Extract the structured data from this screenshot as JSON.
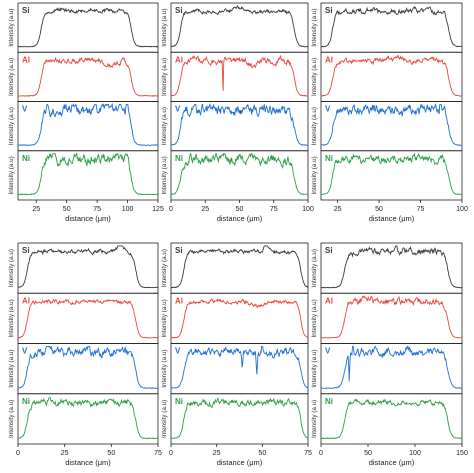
{
  "colors": {
    "Si": "#3a3a3a",
    "Al": "#e8473e",
    "V": "#1f6fd1",
    "Ni": "#2e9e4a"
  },
  "ylabel": "Intensity (a.u)",
  "xlabel": "distance (μm)",
  "element_labels": [
    "Si",
    "Al",
    "V",
    "Ni"
  ],
  "chart_data": [
    {
      "type": "line",
      "xlim": [
        10,
        125
      ],
      "xticks": [
        25,
        50,
        75,
        100,
        125
      ],
      "edges": [
        29,
        103
      ],
      "series": [
        {
          "name": "Si",
          "noise": 0.03,
          "bumps": [
            [
              45,
              0.06,
              4
            ],
            [
              70,
              0.05,
              4
            ],
            [
              95,
              0.05,
              3
            ]
          ]
        },
        {
          "name": "Al",
          "noise": 0.04,
          "bumps": [
            [
              85,
              -0.1,
              8
            ]
          ]
        },
        {
          "name": "V",
          "noise": 0.09,
          "bumps": [
            [
              100,
              0.2,
              1.2
            ]
          ]
        },
        {
          "name": "Ni",
          "noise": 0.09,
          "bumps": []
        }
      ]
    },
    {
      "type": "line",
      "xlim": [
        0,
        100
      ],
      "xticks": [
        0,
        25,
        50,
        75,
        100
      ],
      "edges": [
        7,
        90
      ],
      "series": [
        {
          "name": "Si",
          "noise": 0.03,
          "bumps": [
            [
              50,
              0.1,
              6
            ]
          ]
        },
        {
          "name": "Al",
          "noise": 0.05,
          "bumps": [
            [
              38,
              -0.75,
              0.35
            ],
            [
              60,
              -0.08,
              6
            ]
          ]
        },
        {
          "name": "V",
          "noise": 0.09,
          "bumps": []
        },
        {
          "name": "Ni",
          "noise": 0.08,
          "bumps": []
        }
      ]
    },
    {
      "type": "line",
      "xlim": [
        15,
        100
      ],
      "xticks": [
        25,
        50,
        75,
        100
      ],
      "edges": [
        22,
        92
      ],
      "series": [
        {
          "name": "Si",
          "noise": 0.04,
          "bumps": [
            [
              45,
              0.06,
              3
            ],
            [
              70,
              0.05,
              3
            ]
          ]
        },
        {
          "name": "Al",
          "noise": 0.04,
          "bumps": [
            [
              60,
              0.06,
              6
            ]
          ]
        },
        {
          "name": "V",
          "noise": 0.08,
          "bumps": [
            [
              87,
              0.45,
              0.45
            ]
          ]
        },
        {
          "name": "Ni",
          "noise": 0.06,
          "bumps": []
        }
      ]
    },
    {
      "type": "line",
      "xlim": [
        0,
        75
      ],
      "xticks": [
        0,
        25,
        50,
        75
      ],
      "edges": [
        5,
        63
      ],
      "series": [
        {
          "name": "Si",
          "noise": 0.03,
          "bumps": [
            [
              55,
              0.18,
              2
            ]
          ]
        },
        {
          "name": "Al",
          "noise": 0.03,
          "bumps": []
        },
        {
          "name": "V",
          "noise": 0.07,
          "bumps": [
            [
              38,
              0.2,
              0.6
            ]
          ]
        },
        {
          "name": "Ni",
          "noise": 0.05,
          "bumps": []
        }
      ]
    },
    {
      "type": "line",
      "xlim": [
        0,
        75
      ],
      "xticks": [
        0,
        25,
        50,
        75
      ],
      "edges": [
        7,
        71
      ],
      "series": [
        {
          "name": "Si",
          "noise": 0.03,
          "bumps": [
            [
              52,
              0.2,
              1.2
            ]
          ]
        },
        {
          "name": "Al",
          "noise": 0.03,
          "bumps": [
            [
              47,
              -0.08,
              5
            ]
          ]
        },
        {
          "name": "V",
          "noise": 0.06,
          "bumps": [
            [
              39,
              -0.35,
              0.4
            ],
            [
              47,
              -0.5,
              0.4
            ],
            [
              50,
              0.3,
              0.4
            ]
          ]
        },
        {
          "name": "Ni",
          "noise": 0.05,
          "bumps": []
        }
      ]
    },
    {
      "type": "line",
      "xlim": [
        0,
        150
      ],
      "xticks": [
        0,
        50,
        100,
        150
      ],
      "edges": [
        25,
        135
      ],
      "series": [
        {
          "name": "Si",
          "noise": 0.05,
          "bumps": [
            [
              80,
              0.2,
              1.5
            ]
          ]
        },
        {
          "name": "Al",
          "noise": 0.05,
          "bumps": [
            [
              50,
              0.08,
              5
            ]
          ]
        },
        {
          "name": "V",
          "noise": 0.06,
          "bumps": [
            [
              30,
              -0.55,
              0.7
            ],
            [
              34,
              0.35,
              0.6
            ]
          ]
        },
        {
          "name": "Ni",
          "noise": 0.04,
          "bumps": []
        }
      ]
    }
  ]
}
